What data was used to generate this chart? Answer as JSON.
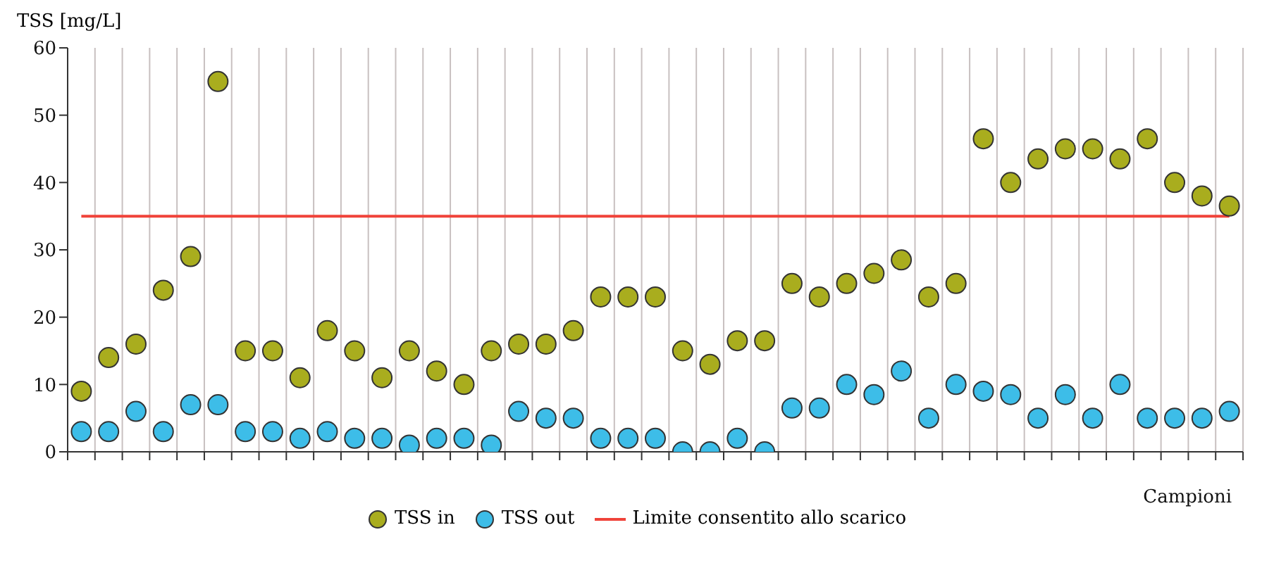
{
  "chart_data": {
    "type": "scatter",
    "xlabel": "Campioni",
    "ylabel": "TSS [mg/L]",
    "categories": [
      null,
      null,
      null,
      null,
      null,
      null,
      null,
      null,
      null,
      null,
      null,
      null,
      null,
      null,
      null,
      null,
      null,
      null,
      null,
      null,
      null,
      null,
      null,
      null,
      null,
      null,
      null,
      null,
      null,
      null,
      null,
      null,
      null,
      null,
      null,
      null,
      null,
      null,
      null,
      null,
      null,
      null,
      null
    ],
    "series": [
      {
        "name": "TSS in",
        "color": "#a9ad1e",
        "values": [
          9,
          14,
          16,
          24,
          29,
          55,
          15,
          15,
          11,
          18,
          15,
          11,
          15,
          12,
          10,
          15,
          16,
          16,
          18,
          23,
          23,
          23,
          15,
          13,
          16.5,
          16.5,
          25,
          23,
          25,
          26.5,
          28.5,
          23,
          25,
          46.5,
          40,
          43.5,
          45,
          45,
          43.5,
          46.5,
          40,
          38,
          36.5
        ]
      },
      {
        "name": "TSS out",
        "color": "#3dbde8",
        "values": [
          3,
          3,
          6,
          3,
          7,
          7,
          3,
          3,
          2,
          3,
          2,
          2,
          1,
          2,
          2,
          1,
          6,
          5,
          5,
          2,
          2,
          2,
          0,
          0,
          2,
          0,
          6.5,
          6.5,
          10,
          8.5,
          12,
          5,
          10,
          9,
          8.5,
          5,
          8.5,
          5,
          10,
          5,
          5,
          5,
          6
        ]
      }
    ],
    "ref_lines": [
      {
        "axis": "y",
        "value": 35,
        "label": "Limite consentito allo scarico",
        "color": "#f0433a"
      }
    ],
    "ylim": [
      0,
      60
    ],
    "yticks": [
      0,
      10,
      20,
      30,
      40,
      50,
      60
    ],
    "grid": "x",
    "legend": "bottom",
    "marker": "circle"
  }
}
